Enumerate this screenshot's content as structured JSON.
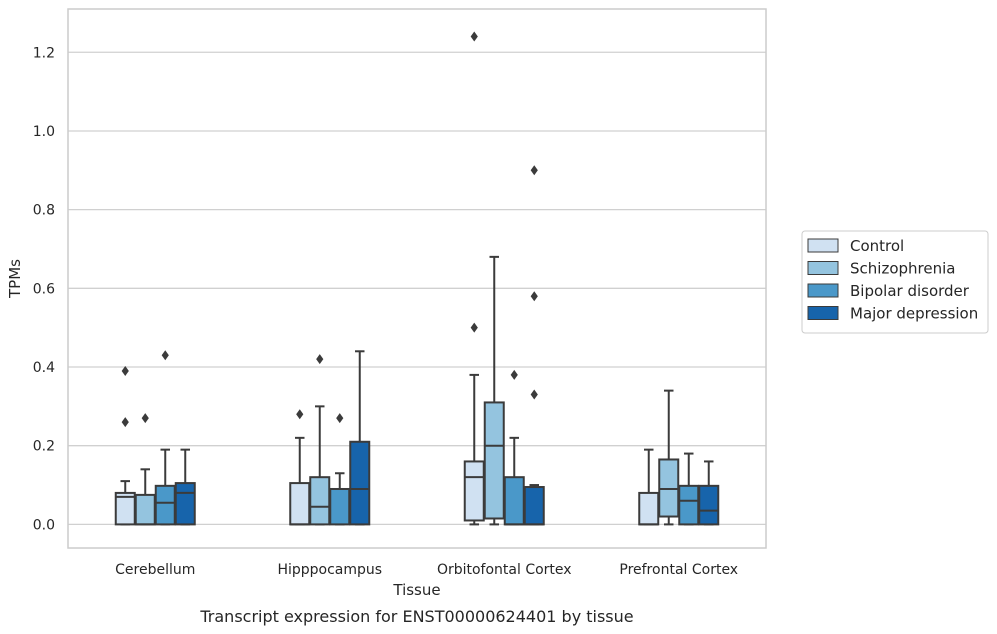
{
  "chart_data": {
    "type": "boxplot",
    "caption": "Transcript expression for ENST00000624401 by tissue",
    "xlabel": "Tissue",
    "ylabel": "TPMs",
    "ylim": [
      -0.06,
      1.31
    ],
    "yticks": [
      0.0,
      0.2,
      0.4,
      0.6,
      0.8,
      1.0,
      1.2
    ],
    "ytick_labels": [
      "0.0",
      "0.2",
      "0.4",
      "0.6",
      "0.8",
      "1.0",
      "1.2"
    ],
    "grid": "horizontal",
    "legend_position": "outside-right",
    "categories": [
      "Cerebellum",
      "Hipppocampus",
      "Orbitofontal Cortex",
      "Prefrontal Cortex"
    ],
    "series": [
      {
        "name": "Control",
        "color": "#d0e1f2",
        "boxes": [
          {
            "whislo": 0.0,
            "q1": 0.0,
            "med": 0.07,
            "q3": 0.08,
            "whishi": 0.11,
            "fliers": [
              0.26,
              0.39
            ]
          },
          {
            "whislo": 0.0,
            "q1": 0.0,
            "med": 0.0,
            "q3": 0.105,
            "whishi": 0.22,
            "fliers": [
              0.28
            ]
          },
          {
            "whislo": 0.0,
            "q1": 0.01,
            "med": 0.12,
            "q3": 0.16,
            "whishi": 0.38,
            "fliers": [
              0.5,
              1.24
            ]
          },
          {
            "whislo": 0.0,
            "q1": 0.0,
            "med": 0.0,
            "q3": 0.08,
            "whishi": 0.19,
            "fliers": []
          }
        ]
      },
      {
        "name": "Schizophrenia",
        "color": "#94c4df",
        "boxes": [
          {
            "whislo": 0.0,
            "q1": 0.0,
            "med": 0.0,
            "q3": 0.075,
            "whishi": 0.14,
            "fliers": [
              0.27
            ]
          },
          {
            "whislo": 0.0,
            "q1": 0.0,
            "med": 0.045,
            "q3": 0.12,
            "whishi": 0.3,
            "fliers": [
              0.42
            ]
          },
          {
            "whislo": 0.0,
            "q1": 0.015,
            "med": 0.2,
            "q3": 0.31,
            "whishi": 0.68,
            "fliers": []
          },
          {
            "whislo": 0.0,
            "q1": 0.02,
            "med": 0.09,
            "q3": 0.165,
            "whishi": 0.34,
            "fliers": []
          }
        ]
      },
      {
        "name": "Bipolar disorder",
        "color": "#4a98c9",
        "boxes": [
          {
            "whislo": 0.0,
            "q1": 0.0,
            "med": 0.055,
            "q3": 0.098,
            "whishi": 0.19,
            "fliers": [
              0.43
            ]
          },
          {
            "whislo": 0.0,
            "q1": 0.0,
            "med": 0.09,
            "q3": 0.09,
            "whishi": 0.13,
            "fliers": [
              0.27
            ]
          },
          {
            "whislo": 0.0,
            "q1": 0.0,
            "med": 0.0,
            "q3": 0.12,
            "whishi": 0.22,
            "fliers": [
              0.38
            ]
          },
          {
            "whislo": 0.0,
            "q1": 0.0,
            "med": 0.06,
            "q3": 0.098,
            "whishi": 0.18,
            "fliers": []
          }
        ]
      },
      {
        "name": "Major depression",
        "color": "#1764ab",
        "boxes": [
          {
            "whislo": 0.0,
            "q1": 0.0,
            "med": 0.08,
            "q3": 0.105,
            "whishi": 0.19,
            "fliers": []
          },
          {
            "whislo": 0.0,
            "q1": 0.0,
            "med": 0.09,
            "q3": 0.21,
            "whishi": 0.44,
            "fliers": []
          },
          {
            "whislo": 0.0,
            "q1": 0.0,
            "med": 0.0,
            "q3": 0.095,
            "whishi": 0.1,
            "fliers": [
              0.33,
              0.58,
              0.9
            ]
          },
          {
            "whislo": 0.0,
            "q1": 0.0,
            "med": 0.035,
            "q3": 0.098,
            "whishi": 0.16,
            "fliers": []
          }
        ]
      }
    ]
  }
}
